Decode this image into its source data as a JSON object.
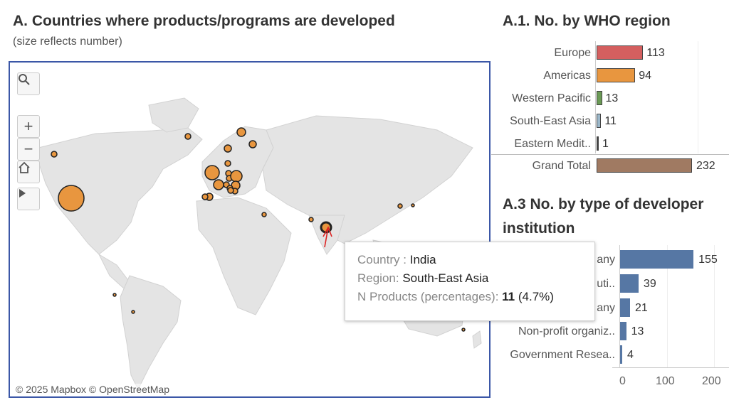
{
  "map_section": {
    "title": "A. Countries where products/programs are developed",
    "subtitle": "(size reflects number)",
    "attribution": "© 2025 Mapbox  © OpenStreetMap",
    "controls": [
      "search-icon",
      "zoom-in-icon",
      "zoom-out-icon",
      "home-icon",
      "play-icon"
    ],
    "tooltip": {
      "country_key": "Country :",
      "country_value": "India",
      "region_key": "Region:",
      "region_value": "South-East Asia",
      "products_key": "N Products (percentages):",
      "products_value": "11",
      "products_pct": "(4.7%)"
    },
    "marker_color": "#e8963f"
  },
  "who_region": {
    "title": "A.1. No. by WHO region",
    "rows": [
      {
        "label": "Europe",
        "value": "113",
        "color": "#d45f5f"
      },
      {
        "label": "Americas",
        "value": "94",
        "color": "#e8963f"
      },
      {
        "label": "Western Pacific",
        "value": "13",
        "color": "#6a9a55"
      },
      {
        "label": "South-East Asia",
        "value": "11",
        "color": "#9bb7c9"
      },
      {
        "label": "Eastern Medit..",
        "value": "1",
        "color": "#444444"
      }
    ],
    "total": {
      "label": "Grand Total",
      "value": "232",
      "color": "#a07a62"
    }
  },
  "developer_type": {
    "title_line1": "A.3 No. by type of developer",
    "title_line2": "institution",
    "rows": [
      {
        "label": "any",
        "value": "155"
      },
      {
        "label": "uti..",
        "value": "39"
      },
      {
        "label": "any",
        "value": "21"
      },
      {
        "label": "Non-profit organiz..",
        "value": "13"
      },
      {
        "label": "Government Resea..",
        "value": "4"
      }
    ],
    "axis_ticks": [
      "0",
      "100",
      "200"
    ],
    "bar_color": "#5677a4"
  }
}
